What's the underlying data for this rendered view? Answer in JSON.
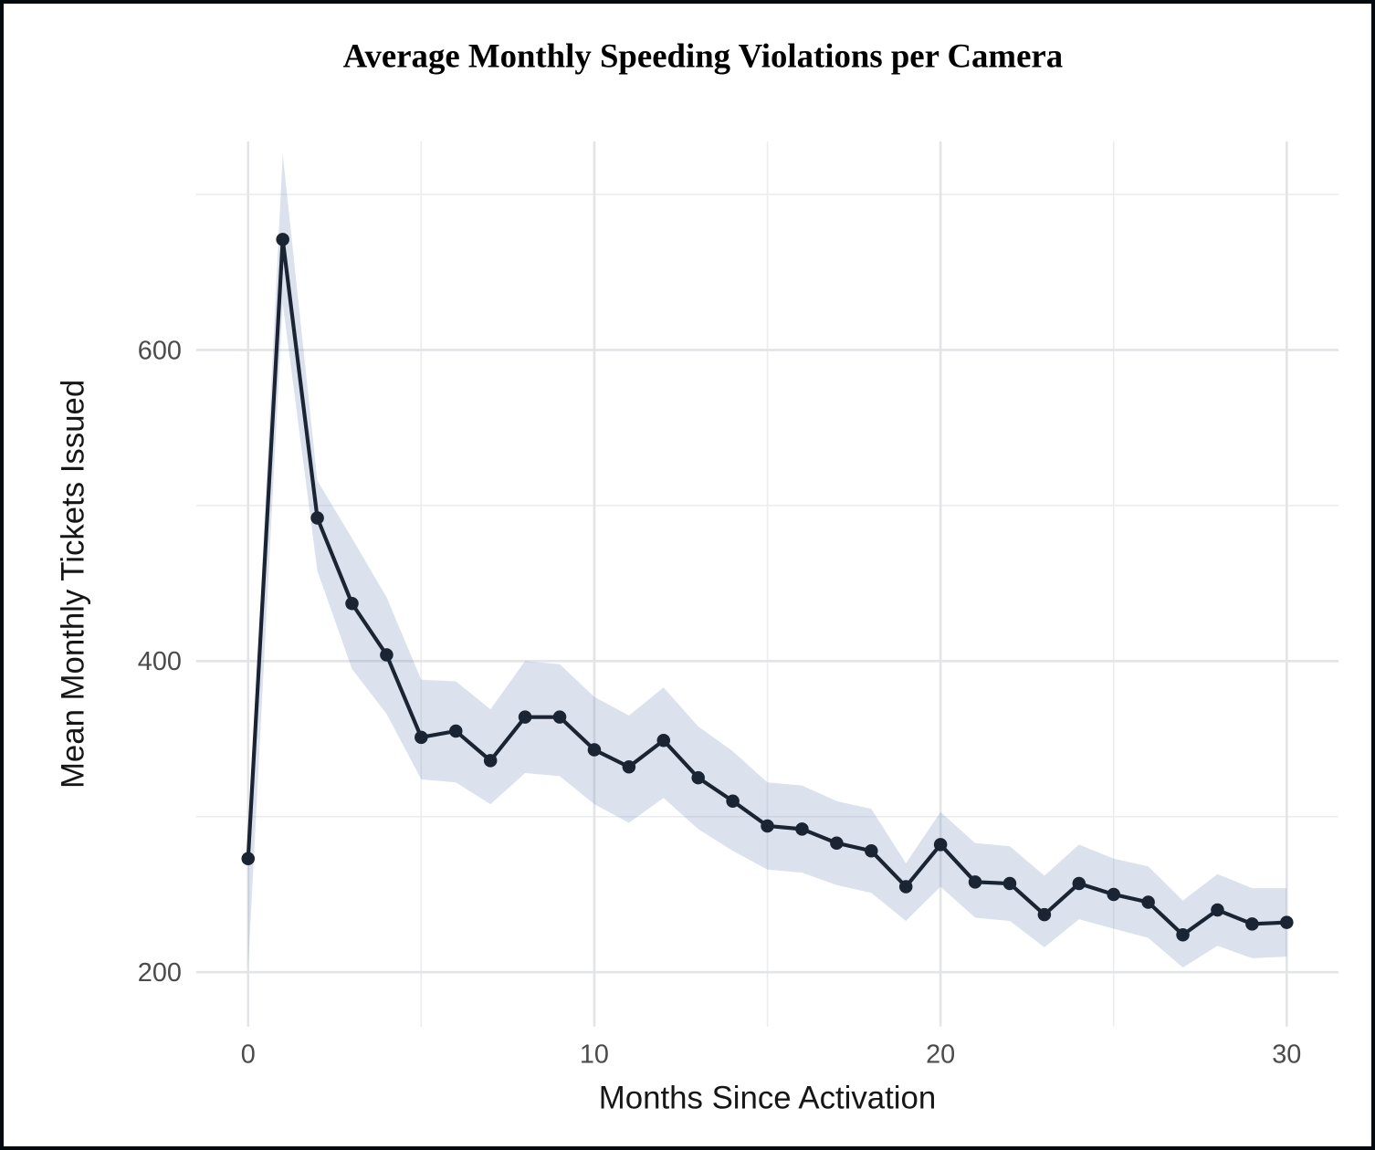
{
  "figure": {
    "title": "Average Monthly Speeding Violations per Camera"
  },
  "chart_data": {
    "type": "line",
    "title": "Average Monthly Speeding Violations per Camera",
    "xlabel": "Months Since Activation",
    "ylabel": "Mean Monthly Tickets Issued",
    "x": [
      0,
      1,
      2,
      3,
      4,
      5,
      6,
      7,
      8,
      9,
      10,
      11,
      12,
      13,
      14,
      15,
      16,
      17,
      18,
      19,
      20,
      21,
      22,
      23,
      24,
      25,
      26,
      27,
      28,
      29,
      30
    ],
    "series": [
      {
        "name": "mean-monthly-tickets",
        "values": [
          273,
          671,
          492,
          437,
          404,
          351,
          355,
          336,
          364,
          364,
          343,
          332,
          349,
          325,
          310,
          294,
          292,
          283,
          278,
          255,
          282,
          258,
          257,
          237,
          257,
          250,
          245,
          224,
          240,
          231,
          232
        ]
      }
    ],
    "ribbon": {
      "name": "confidence-band",
      "lower": [
        203,
        630,
        458,
        395,
        366,
        324,
        322,
        308,
        328,
        326,
        308,
        296,
        312,
        292,
        278,
        266,
        264,
        256,
        251,
        233,
        255,
        235,
        233,
        216,
        234,
        228,
        222,
        203,
        217,
        209,
        210
      ],
      "upper": [
        278,
        726,
        516,
        479,
        441,
        388,
        387,
        369,
        400,
        398,
        377,
        365,
        383,
        358,
        342,
        322,
        320,
        310,
        305,
        270,
        303,
        283,
        281,
        262,
        282,
        273,
        268,
        246,
        263,
        254,
        254
      ]
    },
    "x_major_ticks": [
      0,
      10,
      20,
      30
    ],
    "x_minor_gridlines": [
      5,
      15,
      25
    ],
    "y_major_ticks": [
      200,
      400,
      600
    ],
    "y_minor_gridlines": [
      300,
      500,
      700
    ],
    "xlim": [
      -1.5,
      31.5
    ],
    "ylim": [
      165,
      734
    ],
    "grid": "on",
    "legend_position": "none",
    "colors": {
      "line": "#1b2433",
      "point": "#1b2433",
      "ribbon": "#7490b8",
      "ribbon_opacity": "0.26",
      "grid_major": "#e2e4e7",
      "grid_minor": "#eaecee",
      "tick_label": "#4b4b4b",
      "axis_title": "#161616",
      "title": "#000000",
      "background": "#ffffff",
      "frame_border": "#04080f"
    }
  }
}
